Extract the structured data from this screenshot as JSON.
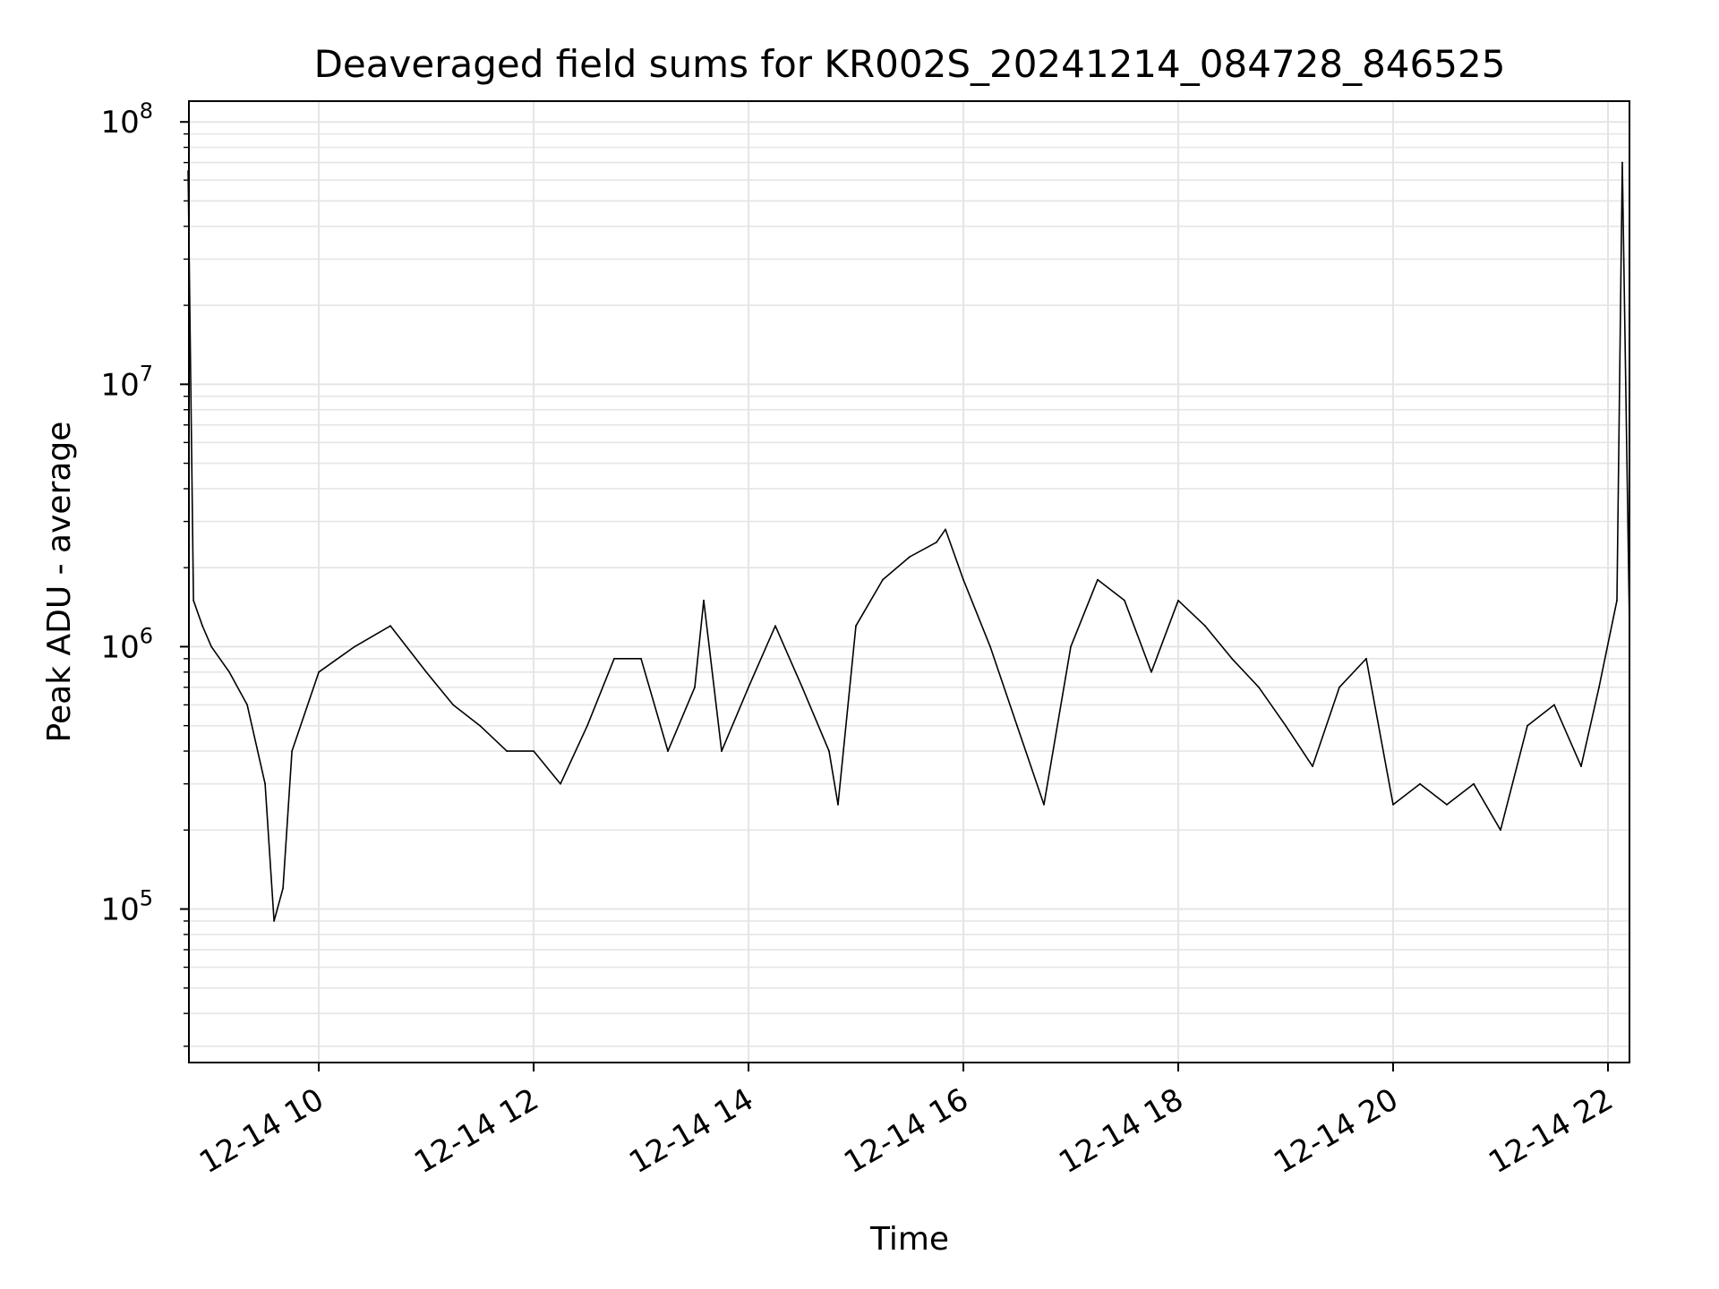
{
  "chart_data": {
    "type": "line",
    "title": "Deaveraged field sums for KR002S_20241214_084728_846525",
    "xlabel": "Time",
    "ylabel": "Peak ADU - average",
    "y_scale": "log",
    "ylim": [
      26000,
      120000000
    ],
    "xlim": [
      "2024-12-14T08:47:28",
      "2024-12-14T22:12:00"
    ],
    "grid": true,
    "grid_minor": true,
    "line_color": "#000000",
    "grid_color": "#e5e5e5",
    "x_tick_labels": [
      "12-14 10",
      "12-14 12",
      "12-14 14",
      "12-14 16",
      "12-14 18",
      "12-14 20",
      "12-14 22"
    ],
    "x_tick_values": [
      "2024-12-14T10:00",
      "2024-12-14T12:00",
      "2024-12-14T14:00",
      "2024-12-14T16:00",
      "2024-12-14T18:00",
      "2024-12-14T20:00",
      "2024-12-14T22:00"
    ],
    "y_tick_labels": [
      {
        "base": "10",
        "exp": "5",
        "value": 100000
      },
      {
        "base": "10",
        "exp": "6",
        "value": 1000000
      },
      {
        "base": "10",
        "exp": "7",
        "value": 10000000
      },
      {
        "base": "10",
        "exp": "8",
        "value": 100000000
      }
    ],
    "series": [
      {
        "x": [
          "2024-12-14T08:47",
          "2024-12-14T08:50",
          "2024-12-14T08:55",
          "2024-12-14T09:00",
          "2024-12-14T09:10",
          "2024-12-14T09:20",
          "2024-12-14T09:30",
          "2024-12-14T09:35",
          "2024-12-14T09:40",
          "2024-12-14T09:45",
          "2024-12-14T10:00",
          "2024-12-14T10:20",
          "2024-12-14T10:40",
          "2024-12-14T11:00",
          "2024-12-14T11:15",
          "2024-12-14T11:30",
          "2024-12-14T11:45",
          "2024-12-14T12:00",
          "2024-12-14T12:15",
          "2024-12-14T12:30",
          "2024-12-14T12:45",
          "2024-12-14T13:00",
          "2024-12-14T13:15",
          "2024-12-14T13:30",
          "2024-12-14T13:35",
          "2024-12-14T13:45",
          "2024-12-14T14:00",
          "2024-12-14T14:15",
          "2024-12-14T14:30",
          "2024-12-14T14:45",
          "2024-12-14T14:50",
          "2024-12-14T15:00",
          "2024-12-14T15:15",
          "2024-12-14T15:30",
          "2024-12-14T15:45",
          "2024-12-14T15:50",
          "2024-12-14T16:00",
          "2024-12-14T16:15",
          "2024-12-14T16:30",
          "2024-12-14T16:45",
          "2024-12-14T17:00",
          "2024-12-14T17:15",
          "2024-12-14T17:30",
          "2024-12-14T17:45",
          "2024-12-14T18:00",
          "2024-12-14T18:15",
          "2024-12-14T18:30",
          "2024-12-14T18:45",
          "2024-12-14T19:00",
          "2024-12-14T19:15",
          "2024-12-14T19:30",
          "2024-12-14T19:45",
          "2024-12-14T20:00",
          "2024-12-14T20:15",
          "2024-12-14T20:30",
          "2024-12-14T20:45",
          "2024-12-14T21:00",
          "2024-12-14T21:15",
          "2024-12-14T21:30",
          "2024-12-14T21:45",
          "2024-12-14T21:55",
          "2024-12-14T22:05",
          "2024-12-14T22:08",
          "2024-12-14T22:12"
        ],
        "values": [
          65000000,
          1500000,
          1200000,
          1000000,
          800000,
          600000,
          300000,
          90000,
          120000,
          400000,
          800000,
          1000000,
          1200000,
          800000,
          600000,
          500000,
          400000,
          400000,
          300000,
          500000,
          900000,
          900000,
          400000,
          700000,
          1500000,
          400000,
          700000,
          1200000,
          700000,
          400000,
          250000,
          1200000,
          1800000,
          2200000,
          2500000,
          2800000,
          1800000,
          1000000,
          500000,
          250000,
          1000000,
          1800000,
          1500000,
          800000,
          1500000,
          1200000,
          900000,
          700000,
          500000,
          350000,
          700000,
          900000,
          250000,
          300000,
          250000,
          300000,
          200000,
          500000,
          600000,
          350000,
          700000,
          1500000,
          70000000,
          1200000
        ]
      }
    ]
  }
}
